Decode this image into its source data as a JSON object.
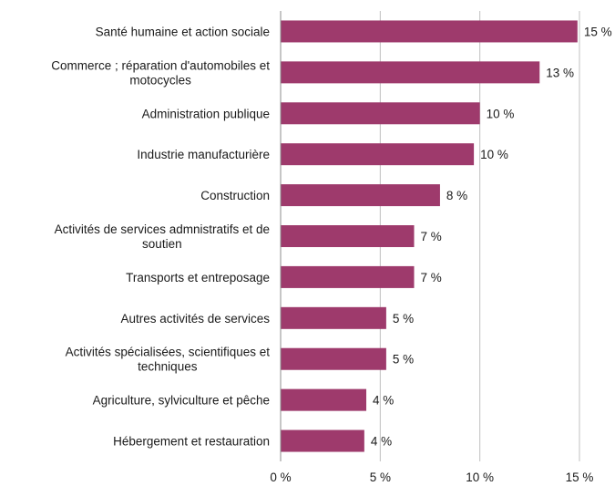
{
  "chart_data": {
    "type": "bar",
    "orientation": "horizontal",
    "title": "",
    "xlabel": "",
    "ylabel": "",
    "categories": [
      [
        "Santé humaine et action sociale"
      ],
      [
        "Commerce ; réparation d'automobiles et",
        "motocycles"
      ],
      [
        "Administration publique"
      ],
      [
        "Industrie manufacturière"
      ],
      [
        "Construction"
      ],
      [
        "Activités de services admnistratifs et de",
        "soutien"
      ],
      [
        "Transports et entreposage"
      ],
      [
        "Autres activités de services"
      ],
      [
        "Activités spécialisées, scientifiques et",
        "techniques"
      ],
      [
        "Agriculture, sylviculture et pêche"
      ],
      [
        "Hébergement et restauration"
      ]
    ],
    "values": [
      14.9,
      13.0,
      10.0,
      9.7,
      8.0,
      6.7,
      6.7,
      5.3,
      5.3,
      4.3,
      4.2
    ],
    "value_labels": [
      "15 %",
      "13 %",
      "10 %",
      "10 %",
      "8 %",
      "7 %",
      "7 %",
      "5 %",
      "5 %",
      "4 %",
      "4 %"
    ],
    "xlim": [
      0,
      15
    ],
    "x_ticks": [
      0,
      5,
      10,
      15
    ],
    "x_tick_labels": [
      "0 %",
      "5 %",
      "10 %",
      "15 %"
    ],
    "grid": true,
    "bar_color": "#9e3a6c",
    "grid_color": "#c0c0c0"
  }
}
